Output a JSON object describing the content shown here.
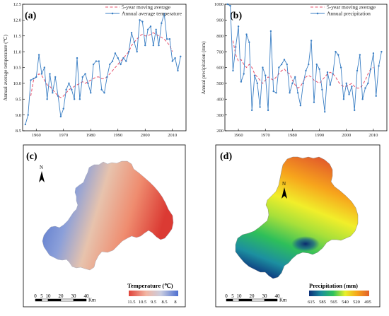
{
  "chart_data": [
    {
      "type": "line",
      "panel": "(a)",
      "ylabel": "Annual average temperature (℃)",
      "xlim": [
        1955,
        2015
      ],
      "ylim": [
        8.5,
        12.5
      ],
      "xticks": [
        1960,
        1970,
        1980,
        1990,
        2000,
        2010
      ],
      "yticks": [
        8.5,
        9.0,
        9.5,
        10.0,
        10.5,
        11.0,
        11.5,
        12.0,
        12.5
      ],
      "ytick_labels": [
        "8.5",
        "9.0",
        "9.5",
        "10.0",
        "10.5",
        "11.0",
        "11.5",
        "12.0",
        "12.5"
      ],
      "legend_position": "top-right",
      "series": [
        {
          "name": "5-year moving average",
          "style": "dashed",
          "color": "#e8506b",
          "x": [
            1958,
            1959,
            1960,
            1961,
            1962,
            1963,
            1964,
            1965,
            1966,
            1967,
            1968,
            1969,
            1970,
            1971,
            1972,
            1973,
            1974,
            1975,
            1976,
            1977,
            1978,
            1979,
            1980,
            1981,
            1982,
            1983,
            1984,
            1985,
            1986,
            1987,
            1988,
            1989,
            1990,
            1991,
            1992,
            1993,
            1994,
            1995,
            1996,
            1997,
            1998,
            1999,
            2000,
            2001,
            2002,
            2003,
            2004,
            2005,
            2006,
            2007,
            2008,
            2009,
            2010
          ],
          "y": [
            9.6,
            10.1,
            10.2,
            10.3,
            10.25,
            10.1,
            9.95,
            9.9,
            9.8,
            9.7,
            9.6,
            9.55,
            9.6,
            9.7,
            9.8,
            9.85,
            9.9,
            9.95,
            10.0,
            10.05,
            10.0,
            10.05,
            10.1,
            10.15,
            10.2,
            10.2,
            10.15,
            10.15,
            10.2,
            10.3,
            10.4,
            10.5,
            10.6,
            10.7,
            10.8,
            10.9,
            11.0,
            11.2,
            11.3,
            11.4,
            11.5,
            11.55,
            11.5,
            11.5,
            11.55,
            11.6,
            11.55,
            11.5,
            11.45,
            11.4,
            11.3,
            11.2,
            11.0
          ]
        },
        {
          "name": "Annual average temperature",
          "style": "solid-marker",
          "color": "#3b7fc4",
          "x": [
            1956,
            1957,
            1958,
            1959,
            1960,
            1961,
            1962,
            1963,
            1964,
            1965,
            1966,
            1967,
            1968,
            1969,
            1970,
            1971,
            1972,
            1973,
            1974,
            1975,
            1976,
            1977,
            1978,
            1979,
            1980,
            1981,
            1982,
            1983,
            1984,
            1985,
            1986,
            1987,
            1988,
            1989,
            1990,
            1991,
            1992,
            1993,
            1994,
            1995,
            1996,
            1997,
            1998,
            1999,
            2000,
            2001,
            2002,
            2003,
            2004,
            2005,
            2006,
            2007,
            2008,
            2009,
            2010,
            2011,
            2012,
            2013
          ],
          "y": [
            8.7,
            9.0,
            10.1,
            10.15,
            10.2,
            10.9,
            10.3,
            10.5,
            9.5,
            10.3,
            9.7,
            10.2,
            9.6,
            8.95,
            9.2,
            9.8,
            10.0,
            9.8,
            9.5,
            10.8,
            9.5,
            10.2,
            10.3,
            10.0,
            9.7,
            10.6,
            10.7,
            10.7,
            9.8,
            9.7,
            10.2,
            10.6,
            10.7,
            10.95,
            10.8,
            10.6,
            10.8,
            10.7,
            11.0,
            11.6,
            11.3,
            11.0,
            12.0,
            11.95,
            11.2,
            11.7,
            11.8,
            11.2,
            11.7,
            11.2,
            11.9,
            12.2,
            11.4,
            11.4,
            10.7,
            10.8,
            10.4,
            10.85
          ]
        }
      ]
    },
    {
      "type": "line",
      "panel": "(b)",
      "ylabel": "Annual precipitation (mm)",
      "xlim": [
        1955,
        2015
      ],
      "ylim": [
        200,
        1000
      ],
      "xticks": [
        1960,
        1970,
        1980,
        1990,
        2000,
        2010
      ],
      "yticks": [
        200,
        300,
        400,
        500,
        600,
        700,
        800,
        900,
        1000
      ],
      "legend_position": "top-right",
      "series": [
        {
          "name": "5-year moving average",
          "style": "dashed",
          "color": "#e8506b",
          "x": [
            1958,
            1959,
            1960,
            1961,
            1962,
            1963,
            1964,
            1965,
            1966,
            1967,
            1968,
            1969,
            1970,
            1971,
            1972,
            1973,
            1974,
            1975,
            1976,
            1977,
            1978,
            1979,
            1980,
            1981,
            1982,
            1983,
            1984,
            1985,
            1986,
            1987,
            1988,
            1989,
            1990,
            1991,
            1992,
            1993,
            1994,
            1995,
            1996,
            1997,
            1998,
            1999,
            2000,
            2001,
            2002,
            2003,
            2004,
            2005,
            2006,
            2007,
            2008,
            2009,
            2010
          ],
          "y": [
            770,
            680,
            640,
            650,
            620,
            600,
            620,
            600,
            560,
            540,
            520,
            500,
            520,
            540,
            530,
            520,
            540,
            560,
            580,
            590,
            570,
            560,
            520,
            490,
            470,
            480,
            510,
            540,
            550,
            540,
            520,
            510,
            500,
            520,
            540,
            560,
            570,
            560,
            540,
            510,
            490,
            480,
            480,
            490,
            500,
            480,
            470,
            470,
            490,
            520,
            560,
            590,
            600
          ]
        },
        {
          "name": "Annual precipitation",
          "style": "solid-marker",
          "color": "#3b7fc4",
          "x": [
            1956,
            1957,
            1958,
            1959,
            1960,
            1961,
            1962,
            1963,
            1964,
            1965,
            1966,
            1967,
            1968,
            1969,
            1970,
            1971,
            1972,
            1973,
            1974,
            1975,
            1976,
            1977,
            1978,
            1979,
            1980,
            1981,
            1982,
            1983,
            1984,
            1985,
            1986,
            1987,
            1988,
            1989,
            1990,
            1991,
            1992,
            1993,
            1994,
            1995,
            1996,
            1997,
            1998,
            1999,
            2000,
            2001,
            2002,
            2003,
            2004,
            2005,
            2006,
            2007,
            2008,
            2009,
            2010,
            2011,
            2012,
            2013
          ],
          "y": [
            1000,
            990,
            580,
            730,
            860,
            510,
            560,
            810,
            760,
            330,
            550,
            500,
            350,
            600,
            550,
            330,
            830,
            450,
            440,
            600,
            620,
            650,
            620,
            440,
            500,
            540,
            440,
            360,
            500,
            580,
            620,
            770,
            380,
            620,
            590,
            460,
            320,
            570,
            490,
            560,
            700,
            680,
            600,
            400,
            500,
            430,
            480,
            330,
            580,
            680,
            400,
            470,
            500,
            590,
            690,
            420,
            610,
            700
          ]
        }
      ]
    }
  ],
  "maps": {
    "c": {
      "letter": "(c)",
      "north": "N",
      "scale_ticks": [
        "0",
        "5",
        "10",
        "20",
        "30",
        "40"
      ],
      "scale_unit": "Km",
      "legend_title": "Temperature (℃)",
      "legend_ticks": [
        "11.5",
        "10.5",
        "9.5",
        "8.5",
        "8"
      ],
      "colors": [
        "#e0433a",
        "#f3b6a3",
        "#c9cde0",
        "#4d6fd0"
      ]
    },
    "d": {
      "letter": "(d)",
      "north": "N",
      "scale_ticks": [
        "0",
        "5",
        "10",
        "20",
        "30",
        "40"
      ],
      "scale_unit": "Km",
      "legend_title": "Precipitation (mm)",
      "legend_ticks": [
        "615",
        "585",
        "565",
        "540",
        "520",
        "495"
      ],
      "colors": [
        "#0b2f7a",
        "#1a8f9d",
        "#2fc25b",
        "#e8f02b",
        "#f6a51a",
        "#e25f2a"
      ]
    }
  }
}
